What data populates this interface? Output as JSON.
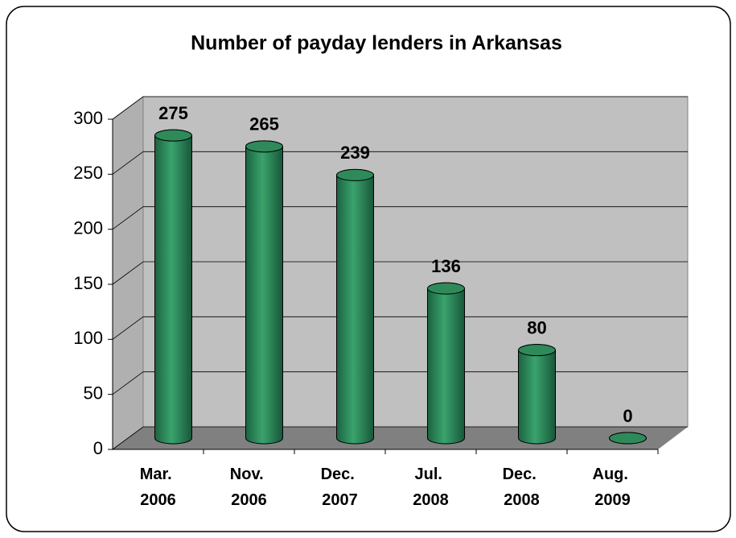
{
  "chart_data": {
    "type": "bar",
    "title": "Number of payday lenders in Arkansas",
    "categories": [
      "Mar. 2006",
      "Nov. 2006",
      "Dec. 2007",
      "Jul. 2008",
      "Dec. 2008",
      "Aug. 2009"
    ],
    "values": [
      275,
      265,
      239,
      136,
      80,
      0
    ],
    "color": "#2e8b57",
    "ylim": [
      0,
      300
    ],
    "yticks": [
      0,
      50,
      100,
      150,
      200,
      250,
      300
    ],
    "grid": true
  }
}
